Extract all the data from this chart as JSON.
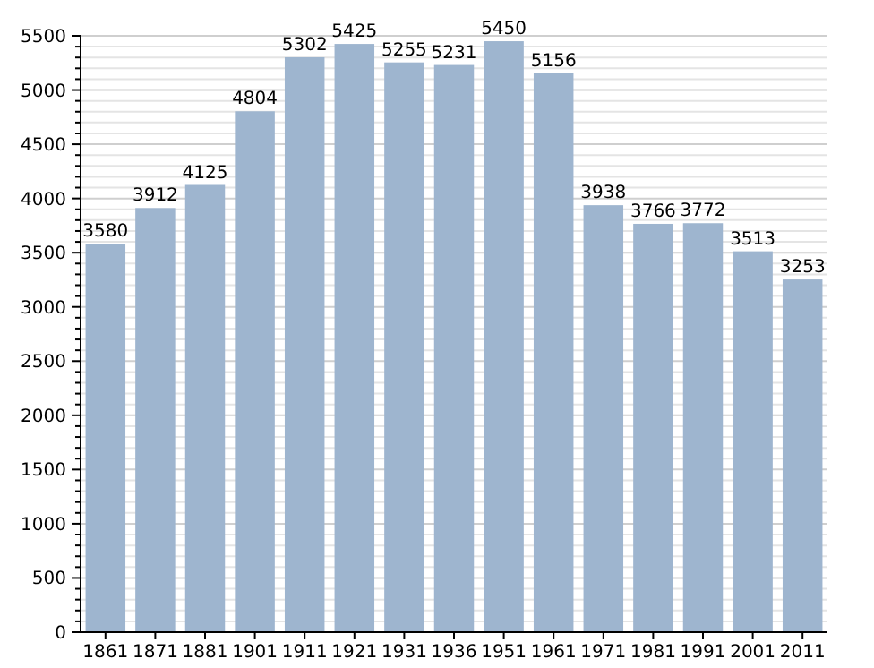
{
  "chart_data": {
    "type": "bar",
    "categories": [
      "1861",
      "1871",
      "1881",
      "1901",
      "1911",
      "1921",
      "1931",
      "1936",
      "1951",
      "1961",
      "1971",
      "1981",
      "1991",
      "2001",
      "2011"
    ],
    "values": [
      3580,
      3912,
      4125,
      4804,
      5302,
      5425,
      5255,
      5231,
      5450,
      5156,
      3938,
      3766,
      3772,
      3513,
      3253
    ],
    "color": "#9eb5cf",
    "data_labels": true,
    "ylim": [
      0,
      5500
    ],
    "yticks": [
      0,
      {
        "value": 100,
        "label": null
      },
      {
        "value": 200,
        "label": null
      },
      {
        "value": 300,
        "label": null
      },
      {
        "value": 400,
        "label": null
      },
      500,
      {
        "value": 600,
        "label": null
      },
      {
        "value": 700,
        "label": null
      },
      {
        "value": 800,
        "label": null
      },
      {
        "value": 900,
        "label": null
      },
      1000,
      {
        "value": 1100,
        "label": null
      },
      {
        "value": 1200,
        "label": null
      },
      {
        "value": 1300,
        "label": null
      },
      {
        "value": 1400,
        "label": null
      },
      1500,
      {
        "value": 1600,
        "label": null
      },
      {
        "value": 1700,
        "label": null
      },
      {
        "value": 1800,
        "label": null
      },
      {
        "value": 1900,
        "label": null
      },
      2000,
      {
        "value": 2100,
        "label": null
      },
      {
        "value": 2200,
        "label": null
      },
      {
        "value": 2300,
        "label": null
      },
      {
        "value": 2400,
        "label": null
      },
      2500,
      {
        "value": 2600,
        "label": null
      },
      {
        "value": 2700,
        "label": null
      },
      {
        "value": 2800,
        "label": null
      },
      {
        "value": 2900,
        "label": null
      },
      3000,
      {
        "value": 3100,
        "label": null
      },
      {
        "value": 3200,
        "label": null
      },
      {
        "value": 3300,
        "label": null
      },
      {
        "value": 3400,
        "label": null
      },
      3500,
      {
        "value": 3600,
        "label": null
      },
      {
        "value": 3700,
        "label": null
      },
      {
        "value": 3800,
        "label": null
      },
      {
        "value": 3900,
        "label": null
      },
      4000,
      {
        "value": 4100,
        "label": null
      },
      {
        "value": 4200,
        "label": null
      },
      {
        "value": 4300,
        "label": null
      },
      {
        "value": 4400,
        "label": null
      },
      4500,
      {
        "value": 4600,
        "label": null
      },
      {
        "value": 4700,
        "label": null
      },
      {
        "value": 4800,
        "label": null
      },
      {
        "value": 4900,
        "label": null
      },
      5000,
      {
        "value": 5100,
        "label": null
      },
      {
        "value": 5200,
        "label": null
      },
      {
        "value": 5300,
        "label": null
      },
      {
        "value": 5400,
        "label": null
      },
      5500
    ],
    "grid": "y"
  }
}
